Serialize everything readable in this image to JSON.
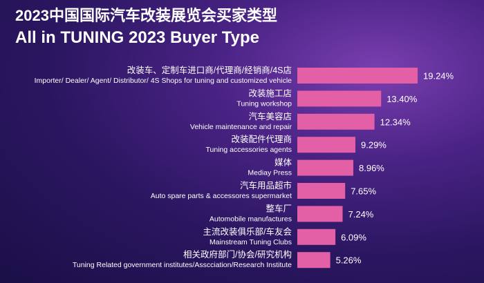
{
  "title": "2023中国国际汽车改装展览会买家类型",
  "subtitle": "All in TUNING 2023 Buyer Type",
  "bar_color": "#e35fa6",
  "chart_data": {
    "type": "bar",
    "orientation": "horizontal",
    "categories": [
      {
        "cn": "改装车、定制车进口商/代理商/经销商/4S店",
        "en": "Importer/ Dealer/ Agent/ Distributor/ 4S Shops for tuning and customized vehicle"
      },
      {
        "cn": "改装施工店",
        "en": "Tuning workshop"
      },
      {
        "cn": "汽车美容店",
        "en": "Vehicle maintenance and repair"
      },
      {
        "cn": "改装配件代理商",
        "en": "Tuning accessories agents"
      },
      {
        "cn": "媒体",
        "en": "Mediay Press"
      },
      {
        "cn": "汽车用品超市",
        "en": "Auto spare parts & accessores supermarket"
      },
      {
        "cn": "整车厂",
        "en": "Automobile manufactures"
      },
      {
        "cn": "主流改装俱乐部/车友会",
        "en": "Mainstream Tuning Clubs"
      },
      {
        "cn": "相关政府部门/协会/研究机构",
        "en": "Tuning Related government institutes/Asscciation/Research Institute"
      }
    ],
    "values": [
      19.24,
      13.4,
      12.34,
      9.29,
      8.96,
      7.65,
      7.24,
      6.09,
      5.26
    ],
    "value_labels": [
      "19.24%",
      "13.40%",
      "12.34%",
      "9.29%",
      "8.96%",
      "7.65%",
      "7.24%",
      "6.09%",
      "5.26%"
    ],
    "unit": "%"
  }
}
